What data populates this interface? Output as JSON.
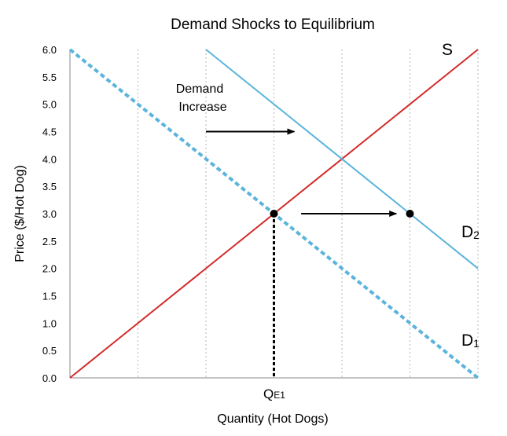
{
  "chart_data": {
    "type": "line",
    "title": "Demand Shocks to Equilibrium",
    "xlabel": "Quantity (Hot Dogs)",
    "ylabel": "Price ($/Hot Dog)",
    "xlim": [
      0,
      6
    ],
    "ylim": [
      0,
      6
    ],
    "yticks": [
      "0.0",
      "0.5",
      "1.0",
      "1.5",
      "2.0",
      "2.5",
      "3.0",
      "3.5",
      "4.0",
      "4.5",
      "5.0",
      "5.5",
      "6.0"
    ],
    "x_gridlines": [
      1,
      2,
      3,
      4,
      5
    ],
    "grid": "vertical dotted",
    "series": [
      {
        "name": "S",
        "label_main": "S",
        "label_sub": "",
        "color": "#d42a2a",
        "style": "solid",
        "points": [
          [
            0,
            0
          ],
          [
            6,
            6
          ]
        ]
      },
      {
        "name": "D1",
        "label_main": "D",
        "label_sub": "1",
        "color": "#5ab4dc",
        "style": "dashed",
        "points": [
          [
            0,
            6
          ],
          [
            6,
            0
          ]
        ]
      },
      {
        "name": "D2",
        "label_main": "D",
        "label_sub": "2",
        "color": "#5ab4dc",
        "style": "solid",
        "points": [
          [
            2,
            6
          ],
          [
            6,
            2
          ]
        ]
      }
    ],
    "points": [
      {
        "name": "E1",
        "x": 3,
        "y": 3
      },
      {
        "name": "E2",
        "x": 5,
        "y": 3
      }
    ],
    "dropline": {
      "x": 3,
      "y_from": 3,
      "y_to": 0,
      "style": "dotted"
    },
    "x_marker": {
      "x": 3,
      "main": "Q",
      "sub": "E1"
    },
    "annotation": {
      "lines": [
        "Demand",
        "Increase"
      ]
    },
    "arrows": [
      {
        "from": [
          2.0,
          4.5
        ],
        "to": [
          3.3,
          4.5
        ]
      },
      {
        "from": [
          3.4,
          3.0
        ],
        "to": [
          4.8,
          3.0
        ]
      }
    ]
  }
}
